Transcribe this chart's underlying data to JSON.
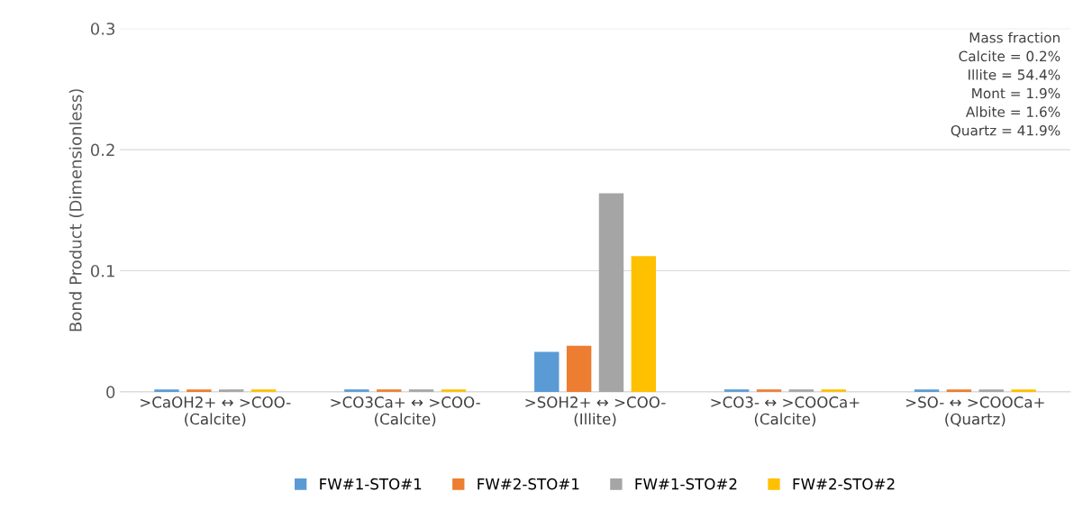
{
  "chart_data": {
    "type": "bar",
    "ylabel": "Bond Product (Dimensionless)",
    "categories": [
      ">CaOH2+ ↔ >COO-\n(Calcite)",
      ">CO3Ca+ ↔ >COO-\n(Calcite)",
      ">SOH2+ ↔ >COO-\n(Illite)",
      ">CO3- ↔ >COOCa+\n(Calcite)",
      ">SO- ↔ >COOCa+\n(Quartz)"
    ],
    "series": [
      {
        "name": "FW#1-STO#1",
        "color": "#5b9bd5",
        "values": [
          0.002,
          0.002,
          0.033,
          0.002,
          0.002
        ]
      },
      {
        "name": "FW#2-STO#1",
        "color": "#ed7d31",
        "values": [
          0.002,
          0.002,
          0.038,
          0.002,
          0.002
        ]
      },
      {
        "name": "FW#1-STO#2",
        "color": "#a5a5a5",
        "values": [
          0.002,
          0.002,
          0.164,
          0.002,
          0.002
        ]
      },
      {
        "name": "FW#2-STO#2",
        "color": "#ffc000",
        "values": [
          0.002,
          0.002,
          0.112,
          0.002,
          0.002
        ]
      }
    ],
    "ylim": [
      0,
      0.3
    ],
    "yticks": [
      {
        "value": 0,
        "label": "0"
      },
      0.1,
      0.2,
      0.3
    ],
    "grid": "y",
    "legend": "bottom",
    "annotations": [
      "Mass fraction\nCalcite = 0.2%\nIllite = 54.4%\nMont = 1.9%\nAlbite = 1.6%\nQuartz = 41.9%"
    ]
  }
}
